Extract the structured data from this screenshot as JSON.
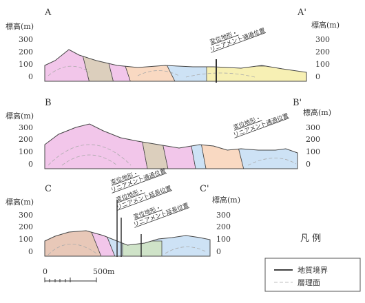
{
  "sections": [
    {
      "left_label": "A",
      "right_label": "A'",
      "axis_label": "標高(m)",
      "ticks": [
        "300",
        "200",
        "100",
        "0"
      ],
      "annotations": [
        {
          "line1": "変位地形・",
          "line2": "リニアメント通過位置"
        }
      ]
    },
    {
      "left_label": "B",
      "right_label": "B'",
      "axis_label": "標高(m)",
      "ticks": [
        "300",
        "200",
        "100",
        "0"
      ],
      "annotations": [
        {
          "line1": "変位地形・",
          "line2": "リニアメント通過位置"
        }
      ]
    },
    {
      "left_label": "C",
      "right_label": "C'",
      "axis_label": "標高(m)",
      "ticks": [
        "300",
        "200",
        "100",
        "0"
      ],
      "annotations": [
        {
          "line1": "変位地形・",
          "line2": "リニアメント通過位置"
        },
        {
          "line1": "変位地形・",
          "line2": "リニアメント延長位置"
        },
        {
          "line1": "変位地形・",
          "line2": "リニアメント延長位置"
        }
      ]
    }
  ],
  "legend": {
    "title": "凡 例",
    "items": [
      "地質境界",
      "層理面"
    ]
  },
  "scale": {
    "start": "0",
    "end": "500m"
  }
}
